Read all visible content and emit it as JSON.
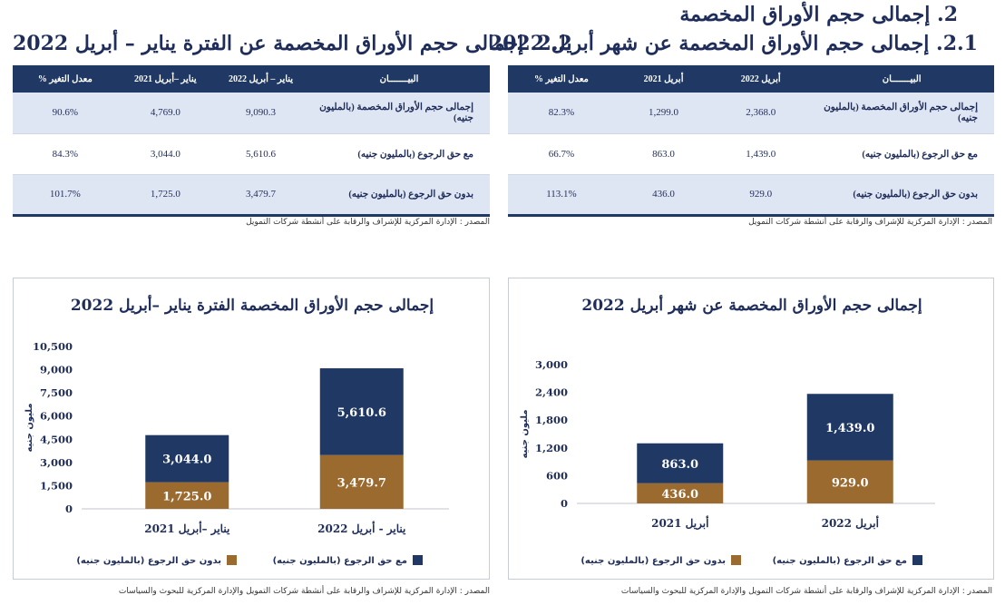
{
  "main_heading": "2.  إجمالى حجم الأوراق المخصمة",
  "section_right": {
    "title": "2.1. إجمالى حجم الأوراق المخصمة عن شهر أبريل 2022",
    "table": {
      "headers": [
        "البيـــــــان",
        "أبريل  2022",
        "أبريل 2021",
        "معدل التغير %"
      ],
      "rows": [
        [
          "إجمالى حجم الأوراق المخصمة (بالمليون جنيه)",
          "2,368.0",
          "1,299.0",
          "82.3%"
        ],
        [
          "مع حق الرجوع (بالمليون جنيه)",
          "1,439.0",
          "863.0",
          "66.7%"
        ],
        [
          "بدون حق الرجوع (بالمليون جنيه)",
          "929.0",
          "436.0",
          "113.1%"
        ]
      ]
    },
    "source": "المصدر : الإدارة المركزية للإشراف والرقابة على أنشطة شركات التمويل"
  },
  "section_left": {
    "title": "2.2. إجمالى حجم الأوراق المخصمة عن الفترة يناير – أبريل 2022",
    "table": {
      "headers": [
        "البيـــــــان",
        "يناير – أبريل 2022",
        "يناير –أبريل 2021",
        "معدل التغير %"
      ],
      "rows": [
        [
          "إجمالى حجم الأوراق المخصمة (بالمليون جنيه)",
          "9,090.3",
          "4,769.0",
          "90.6%"
        ],
        [
          "مع حق الرجوع (بالمليون جنيه)",
          "5,610.6",
          "3,044.0",
          "84.3%"
        ],
        [
          "بدون حق الرجوع (بالمليون جنيه)",
          "3,479.7",
          "1,725.0",
          "101.7%"
        ]
      ]
    },
    "source": "المصدر : الإدارة المركزية للإشراف والرقابة على أنشطة شركات التمويل"
  },
  "chart_data": [
    {
      "id": "right",
      "type": "bar",
      "stacked": true,
      "title": "إجمالى حجم الأوراق المخصمة عن شهر أبريل 2022",
      "ylabel": "مليون جنيه",
      "xlabel": "",
      "categories": [
        "أبريل 2021",
        "أبريل  2022"
      ],
      "yticks": [
        "0",
        "600",
        "1,200",
        "1,800",
        "2,400",
        "3,000"
      ],
      "ylim": [
        0,
        3000
      ],
      "series": [
        {
          "name": "بدون حق الرجوع (بالمليون جنيه)",
          "values": [
            436.0,
            929.0
          ],
          "labels": [
            "436.0",
            "929.0"
          ],
          "color": "#9b6a2f"
        },
        {
          "name": "مع حق الرجوع (بالمليون جنيه)",
          "values": [
            863.0,
            1439.0
          ],
          "labels": [
            "863.0",
            "1,439.0"
          ],
          "color": "#1f3864"
        }
      ],
      "legend_position": "bottom",
      "source": "المصدر : الإدارة المركزية للإشراف والرقابة على أنشطة شركات التمويل والإدارة المركزية للبحوث والسياسات"
    },
    {
      "id": "left",
      "type": "bar",
      "stacked": true,
      "title": "إجمالى حجم الأوراق المخصمة الفترة يناير –أبريل 2022",
      "ylabel": "مليون جنيه",
      "xlabel": "",
      "categories": [
        "يناير –أبريل 2021",
        "يناير  - أبريل 2022"
      ],
      "yticks": [
        "0",
        "1,500",
        "3,000",
        "4,500",
        "6,000",
        "7,500",
        "9,000",
        "10,500"
      ],
      "ylim": [
        0,
        10500
      ],
      "series": [
        {
          "name": "بدون حق الرجوع (بالمليون جنيه)",
          "values": [
            1725.0,
            3479.7
          ],
          "labels": [
            "1,725.0",
            "3,479.7"
          ],
          "color": "#9b6a2f"
        },
        {
          "name": "مع حق الرجوع (بالمليون جنيه)",
          "values": [
            3044.0,
            5610.6
          ],
          "labels": [
            "3,044.0",
            "5,610.6"
          ],
          "color": "#1f3864"
        }
      ],
      "legend_position": "bottom",
      "source": "المصدر : الإدارة المركزية للإشراف والرقابة على أنشطة شركات التمويل والإدارة المركزية للبحوث والسياسات"
    }
  ]
}
